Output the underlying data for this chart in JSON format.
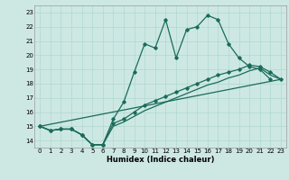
{
  "xlabel": "Humidex (Indice chaleur)",
  "xlim": [
    -0.5,
    23.5
  ],
  "ylim": [
    13.5,
    23.5
  ],
  "xticks": [
    0,
    1,
    2,
    3,
    4,
    5,
    6,
    7,
    8,
    9,
    10,
    11,
    12,
    13,
    14,
    15,
    16,
    17,
    18,
    19,
    20,
    21,
    22,
    23
  ],
  "yticks": [
    14,
    15,
    16,
    17,
    18,
    19,
    20,
    21,
    22,
    23
  ],
  "bg_color": "#cde8e3",
  "grid_color": "#b0d8d0",
  "line_color": "#1a6b5a",
  "line1_x": [
    0,
    1,
    2,
    3,
    4,
    5,
    6,
    7,
    8,
    9,
    10,
    11,
    12,
    13,
    14,
    15,
    16,
    17,
    18,
    19,
    20,
    21,
    22
  ],
  "line1_y": [
    15.0,
    14.7,
    14.8,
    14.8,
    14.4,
    13.7,
    13.7,
    15.5,
    16.7,
    18.8,
    20.8,
    20.5,
    22.5,
    19.8,
    21.8,
    22.0,
    22.8,
    22.5,
    20.8,
    19.8,
    19.2,
    19.0,
    18.3
  ],
  "line2_x": [
    0,
    1,
    2,
    3,
    4,
    5,
    6,
    7,
    8,
    9,
    10,
    11,
    12,
    13,
    14,
    15,
    16,
    17,
    18,
    19,
    20,
    21,
    22,
    23
  ],
  "line2_y": [
    15.0,
    14.7,
    14.8,
    14.8,
    14.4,
    13.7,
    13.7,
    15.2,
    15.5,
    16.0,
    16.5,
    16.8,
    17.1,
    17.4,
    17.7,
    18.0,
    18.3,
    18.6,
    18.8,
    19.0,
    19.3,
    19.2,
    18.8,
    18.3
  ],
  "line3_x": [
    0,
    23
  ],
  "line3_y": [
    15.0,
    18.3
  ],
  "line4_x": [
    0,
    1,
    2,
    3,
    4,
    5,
    6,
    7,
    8,
    9,
    10,
    11,
    12,
    13,
    14,
    15,
    16,
    17,
    18,
    19,
    20,
    21,
    22,
    23
  ],
  "line4_y": [
    15.0,
    14.7,
    14.8,
    14.8,
    14.4,
    13.7,
    13.7,
    15.0,
    15.3,
    15.7,
    16.1,
    16.4,
    16.7,
    17.0,
    17.3,
    17.6,
    17.9,
    18.1,
    18.4,
    18.6,
    18.9,
    19.1,
    18.6,
    18.3
  ]
}
